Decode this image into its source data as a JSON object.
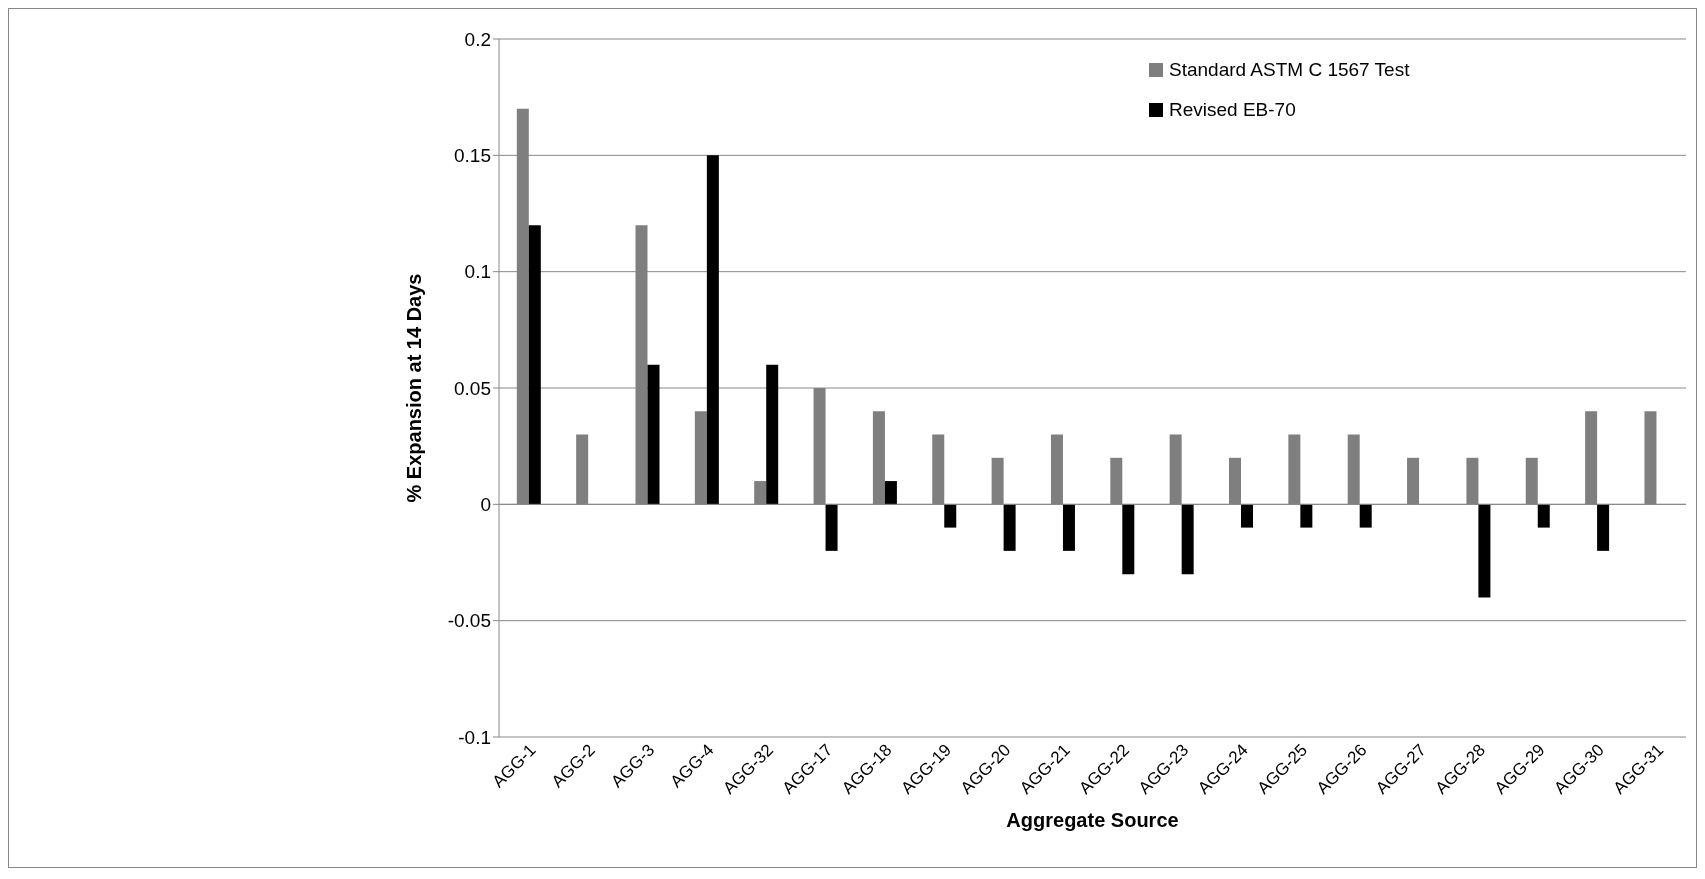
{
  "chart_data": {
    "type": "bar",
    "xlabel": "Aggregate Source",
    "ylabel": "% Expansion at 14 Days",
    "categories": [
      "AGG-1",
      "AGG-2",
      "AGG-3",
      "AGG-4",
      "AGG-32",
      "AGG-17",
      "AGG-18",
      "AGG-19",
      "AGG-20",
      "AGG-21",
      "AGG-22",
      "AGG-23",
      "AGG-24",
      "AGG-25",
      "AGG-26",
      "AGG-27",
      "AGG-28",
      "AGG-29",
      "AGG-30",
      "AGG-31"
    ],
    "series": [
      {
        "name": "Standard ASTM C 1567 Test",
        "color": "#7f7f7f",
        "values": [
          0.17,
          0.03,
          0.12,
          0.04,
          0.01,
          0.05,
          0.04,
          0.03,
          0.02,
          0.03,
          0.02,
          0.03,
          0.02,
          0.03,
          0.03,
          0.02,
          0.02,
          0.02,
          0.04,
          0.04
        ]
      },
      {
        "name": "Revised EB-70",
        "color": "#000000",
        "values": [
          0.12,
          0,
          0.06,
          0.15,
          0.06,
          -0.02,
          0.01,
          -0.01,
          -0.02,
          -0.02,
          -0.03,
          -0.03,
          -0.01,
          -0.01,
          -0.01,
          0,
          -0.04,
          -0.01,
          -0.02,
          0
        ]
      }
    ],
    "ylim": [
      -0.1,
      0.2
    ],
    "yticks": [
      -0.1,
      -0.05,
      0,
      0.05,
      0.1,
      0.15,
      0.2
    ],
    "grid": "y",
    "legend": "top right"
  }
}
